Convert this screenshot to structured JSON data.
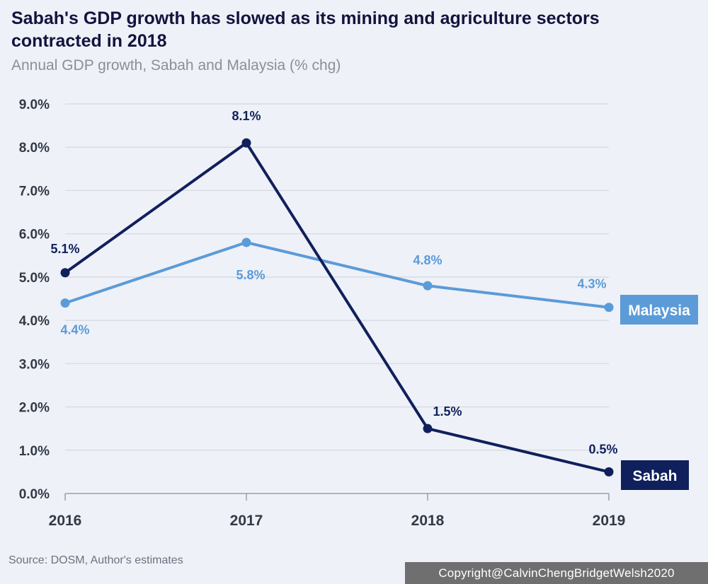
{
  "chart_data": {
    "type": "line",
    "title": "Sabah's GDP growth has slowed as its mining and agriculture sectors contracted in 2018",
    "subtitle": "Annual GDP growth, Sabah and Malaysia (% chg)",
    "x": [
      "2016",
      "2017",
      "2018",
      "2019"
    ],
    "ylim": [
      0,
      9
    ],
    "yticks": [
      "0.0%",
      "1.0%",
      "2.0%",
      "3.0%",
      "4.0%",
      "5.0%",
      "6.0%",
      "7.0%",
      "8.0%",
      "9.0%"
    ],
    "grid": true,
    "series": [
      {
        "name": "Sabah",
        "values": [
          5.1,
          8.1,
          1.5,
          0.5
        ],
        "labels": [
          "5.1%",
          "8.1%",
          "1.5%",
          "0.5%"
        ],
        "color": "#10205c"
      },
      {
        "name": "Malaysia",
        "values": [
          4.4,
          5.8,
          4.8,
          4.3
        ],
        "labels": [
          "4.4%",
          "5.8%",
          "4.8%",
          "4.3%"
        ],
        "color": "#5b9bd8"
      }
    ],
    "source": "Source: DOSM, Author's estimates"
  },
  "footer": {
    "copyright": "Copyright@CalvinChengBridgetWelsh2020"
  }
}
